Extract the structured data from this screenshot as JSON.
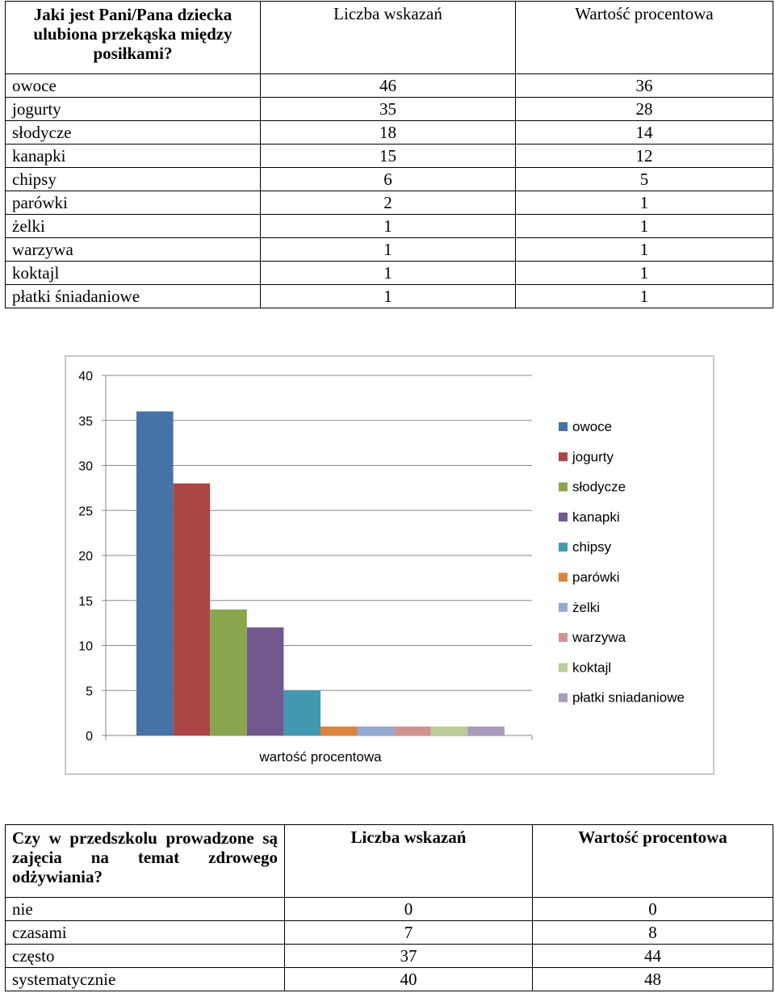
{
  "table1": {
    "question": "Jaki jest Pani/Pana dziecka ulubiona przekąska między posiłkami?",
    "col_count": "Liczba wskazań",
    "col_percent": "Wartość procentowa",
    "rows": [
      {
        "label": "owoce",
        "count": "46",
        "percent": "36"
      },
      {
        "label": "jogurty",
        "count": "35",
        "percent": "28"
      },
      {
        "label": "słodycze",
        "count": "18",
        "percent": "14"
      },
      {
        "label": "kanapki",
        "count": "15",
        "percent": "12"
      },
      {
        "label": "chipsy",
        "count": "6",
        "percent": "5"
      },
      {
        "label": "parówki",
        "count": "2",
        "percent": "1"
      },
      {
        "label": "żelki",
        "count": "1",
        "percent": "1"
      },
      {
        "label": "warzywa",
        "count": "1",
        "percent": "1"
      },
      {
        "label": "koktajl",
        "count": "1",
        "percent": "1"
      },
      {
        "label": "płatki śniadaniowe",
        "count": "1",
        "percent": "1"
      }
    ]
  },
  "chart_data": {
    "type": "bar",
    "categories": [
      "wartość procentowa"
    ],
    "xlabel": "wartość procentowa",
    "ylim": [
      0,
      40
    ],
    "yticks": [
      0,
      5,
      10,
      15,
      20,
      25,
      30,
      35,
      40
    ],
    "grid": true,
    "legend_position": "right",
    "series": [
      {
        "name": "owoce",
        "values": [
          36
        ],
        "color": "#4572A7"
      },
      {
        "name": "jogurty",
        "values": [
          28
        ],
        "color": "#AA4643"
      },
      {
        "name": "słodycze",
        "values": [
          14
        ],
        "color": "#89A54E"
      },
      {
        "name": "kanapki",
        "values": [
          12
        ],
        "color": "#71588F"
      },
      {
        "name": "chipsy",
        "values": [
          5
        ],
        "color": "#4198AF"
      },
      {
        "name": "parówki",
        "values": [
          1
        ],
        "color": "#DB843D"
      },
      {
        "name": "żelki",
        "values": [
          1
        ],
        "color": "#93A9CF"
      },
      {
        "name": "warzywa",
        "values": [
          1
        ],
        "color": "#D19392"
      },
      {
        "name": "koktajl",
        "values": [
          1
        ],
        "color": "#B9CD96"
      },
      {
        "name": "płatki sniadaniowe",
        "values": [
          1
        ],
        "color": "#A99BBD"
      }
    ]
  },
  "table2": {
    "question": "Czy w przedszkolu prowadzone są zajęcia na temat zdrowego odżywiania?",
    "col_count": "Liczba wskazań",
    "col_percent": "Wartość procentowa",
    "rows": [
      {
        "label": "nie",
        "count": "0",
        "percent": "0"
      },
      {
        "label": "czasami",
        "count": "7",
        "percent": "8"
      },
      {
        "label": "często",
        "count": "37",
        "percent": "44"
      },
      {
        "label": "systematycznie",
        "count": "40",
        "percent": "48"
      }
    ]
  }
}
